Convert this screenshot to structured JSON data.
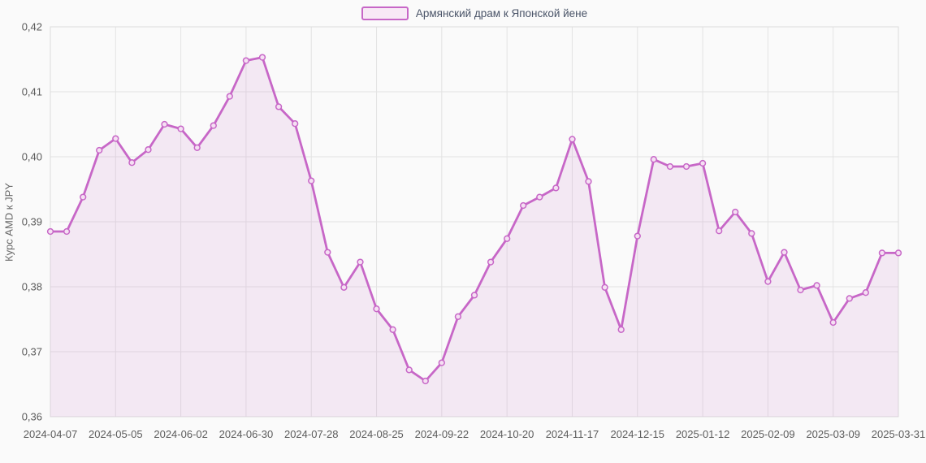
{
  "page": {
    "background": "#fafafa"
  },
  "legend": {
    "label": "Армянский драм к Японской йене",
    "swatch_border": "#c767c7",
    "swatch_fill": "#f8e9f6",
    "text_color": "#4a5468"
  },
  "chart_data": {
    "type": "area",
    "title": "",
    "xlabel": "",
    "ylabel": "Курс AMD к JPY",
    "series_name": "Армянский драм к Японской йене",
    "legend_position": "top-center",
    "grid": true,
    "dates": [
      "2024-04-07",
      "2024-04-14",
      "2024-04-21",
      "2024-04-28",
      "2024-05-05",
      "2024-05-12",
      "2024-05-19",
      "2024-05-26",
      "2024-06-02",
      "2024-06-09",
      "2024-06-16",
      "2024-06-23",
      "2024-06-30",
      "2024-07-07",
      "2024-07-14",
      "2024-07-21",
      "2024-07-28",
      "2024-08-04",
      "2024-08-11",
      "2024-08-18",
      "2024-08-25",
      "2024-09-01",
      "2024-09-08",
      "2024-09-15",
      "2024-09-22",
      "2024-09-29",
      "2024-10-06",
      "2024-10-13",
      "2024-10-20",
      "2024-10-27",
      "2024-11-03",
      "2024-11-10",
      "2024-11-17",
      "2024-11-24",
      "2024-12-01",
      "2024-12-08",
      "2024-12-15",
      "2024-12-22",
      "2024-12-29",
      "2025-01-05",
      "2025-01-12",
      "2025-01-19",
      "2025-01-26",
      "2025-02-02",
      "2025-02-09",
      "2025-02-16",
      "2025-02-23",
      "2025-03-02",
      "2025-03-09",
      "2025-03-16",
      "2025-03-23",
      "2025-03-30",
      "2025-03-31"
    ],
    "values": [
      0.3885,
      0.3885,
      0.3938,
      0.401,
      0.4028,
      0.3991,
      0.4011,
      0.405,
      0.4043,
      0.4014,
      0.4048,
      0.4093,
      0.4148,
      0.4153,
      0.4077,
      0.4051,
      0.3963,
      0.3853,
      0.3799,
      0.3838,
      0.3766,
      0.3734,
      0.3672,
      0.3655,
      0.3683,
      0.3754,
      0.3787,
      0.3838,
      0.3874,
      0.3925,
      0.3938,
      0.3952,
      0.4027,
      0.3962,
      0.3799,
      0.3734,
      0.3878,
      0.3996,
      0.3985,
      0.3985,
      0.399,
      0.3886,
      0.3915,
      0.3882,
      0.3808,
      0.3853,
      0.3795,
      0.3802,
      0.3745,
      0.3782,
      0.3791,
      0.3852,
      0.3852
    ],
    "x_tick_every": 4,
    "x_tick_labels": [
      "2024-04-07",
      "2024-05-05",
      "2024-06-02",
      "2024-06-30",
      "2024-07-28",
      "2024-08-25",
      "2024-09-22",
      "2024-10-20",
      "2024-11-17",
      "2024-12-15",
      "2025-01-12",
      "2025-02-09",
      "2025-03-09",
      "2025-03-31"
    ],
    "ylim": [
      0.36,
      0.42
    ],
    "y_tick_step": 0.01,
    "y_tick_labels": [
      "0,36",
      "0,37",
      "0,38",
      "0,39",
      "0,40",
      "0,41",
      "0,42"
    ],
    "colors": {
      "line": "#c767c7",
      "area_fill": "rgba(199,103,199,0.12)",
      "marker_fill": "#f5e0f3",
      "grid": "#e3e3e3",
      "plot_border": "#dcdcdc",
      "axis_text": "#5b5b5b"
    }
  }
}
